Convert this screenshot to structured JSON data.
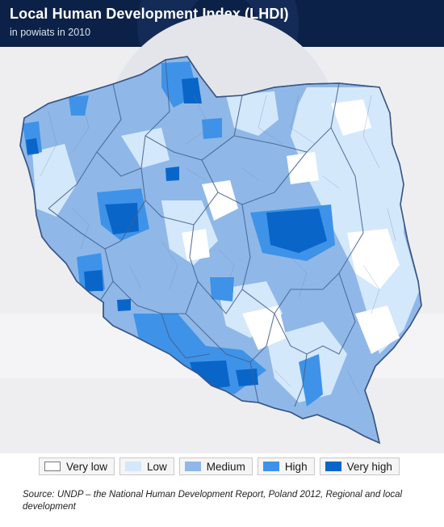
{
  "header": {
    "title": "Local Human Development Index (LHDI)",
    "subtitle": "in powiats in 2010"
  },
  "colors": {
    "header_bg": "#0c2147",
    "border": "#44608c",
    "very_low": "#ffffff",
    "low": "#d4e8fb",
    "medium": "#8fb8e8",
    "high": "#3e93e8",
    "very_high": "#0a65c9"
  },
  "legend": {
    "items": [
      {
        "key": "very_low",
        "label": "Very low",
        "color": "#ffffff"
      },
      {
        "key": "low",
        "label": "Low",
        "color": "#d4e8fb"
      },
      {
        "key": "medium",
        "label": "Medium",
        "color": "#8fb8e8"
      },
      {
        "key": "high",
        "label": "High",
        "color": "#3e93e8"
      },
      {
        "key": "very_high",
        "label": "Very high",
        "color": "#0a65c9"
      }
    ]
  },
  "source": "Source: UNDP – the National Human Development Report, Poland 2012, Regional and local development"
}
